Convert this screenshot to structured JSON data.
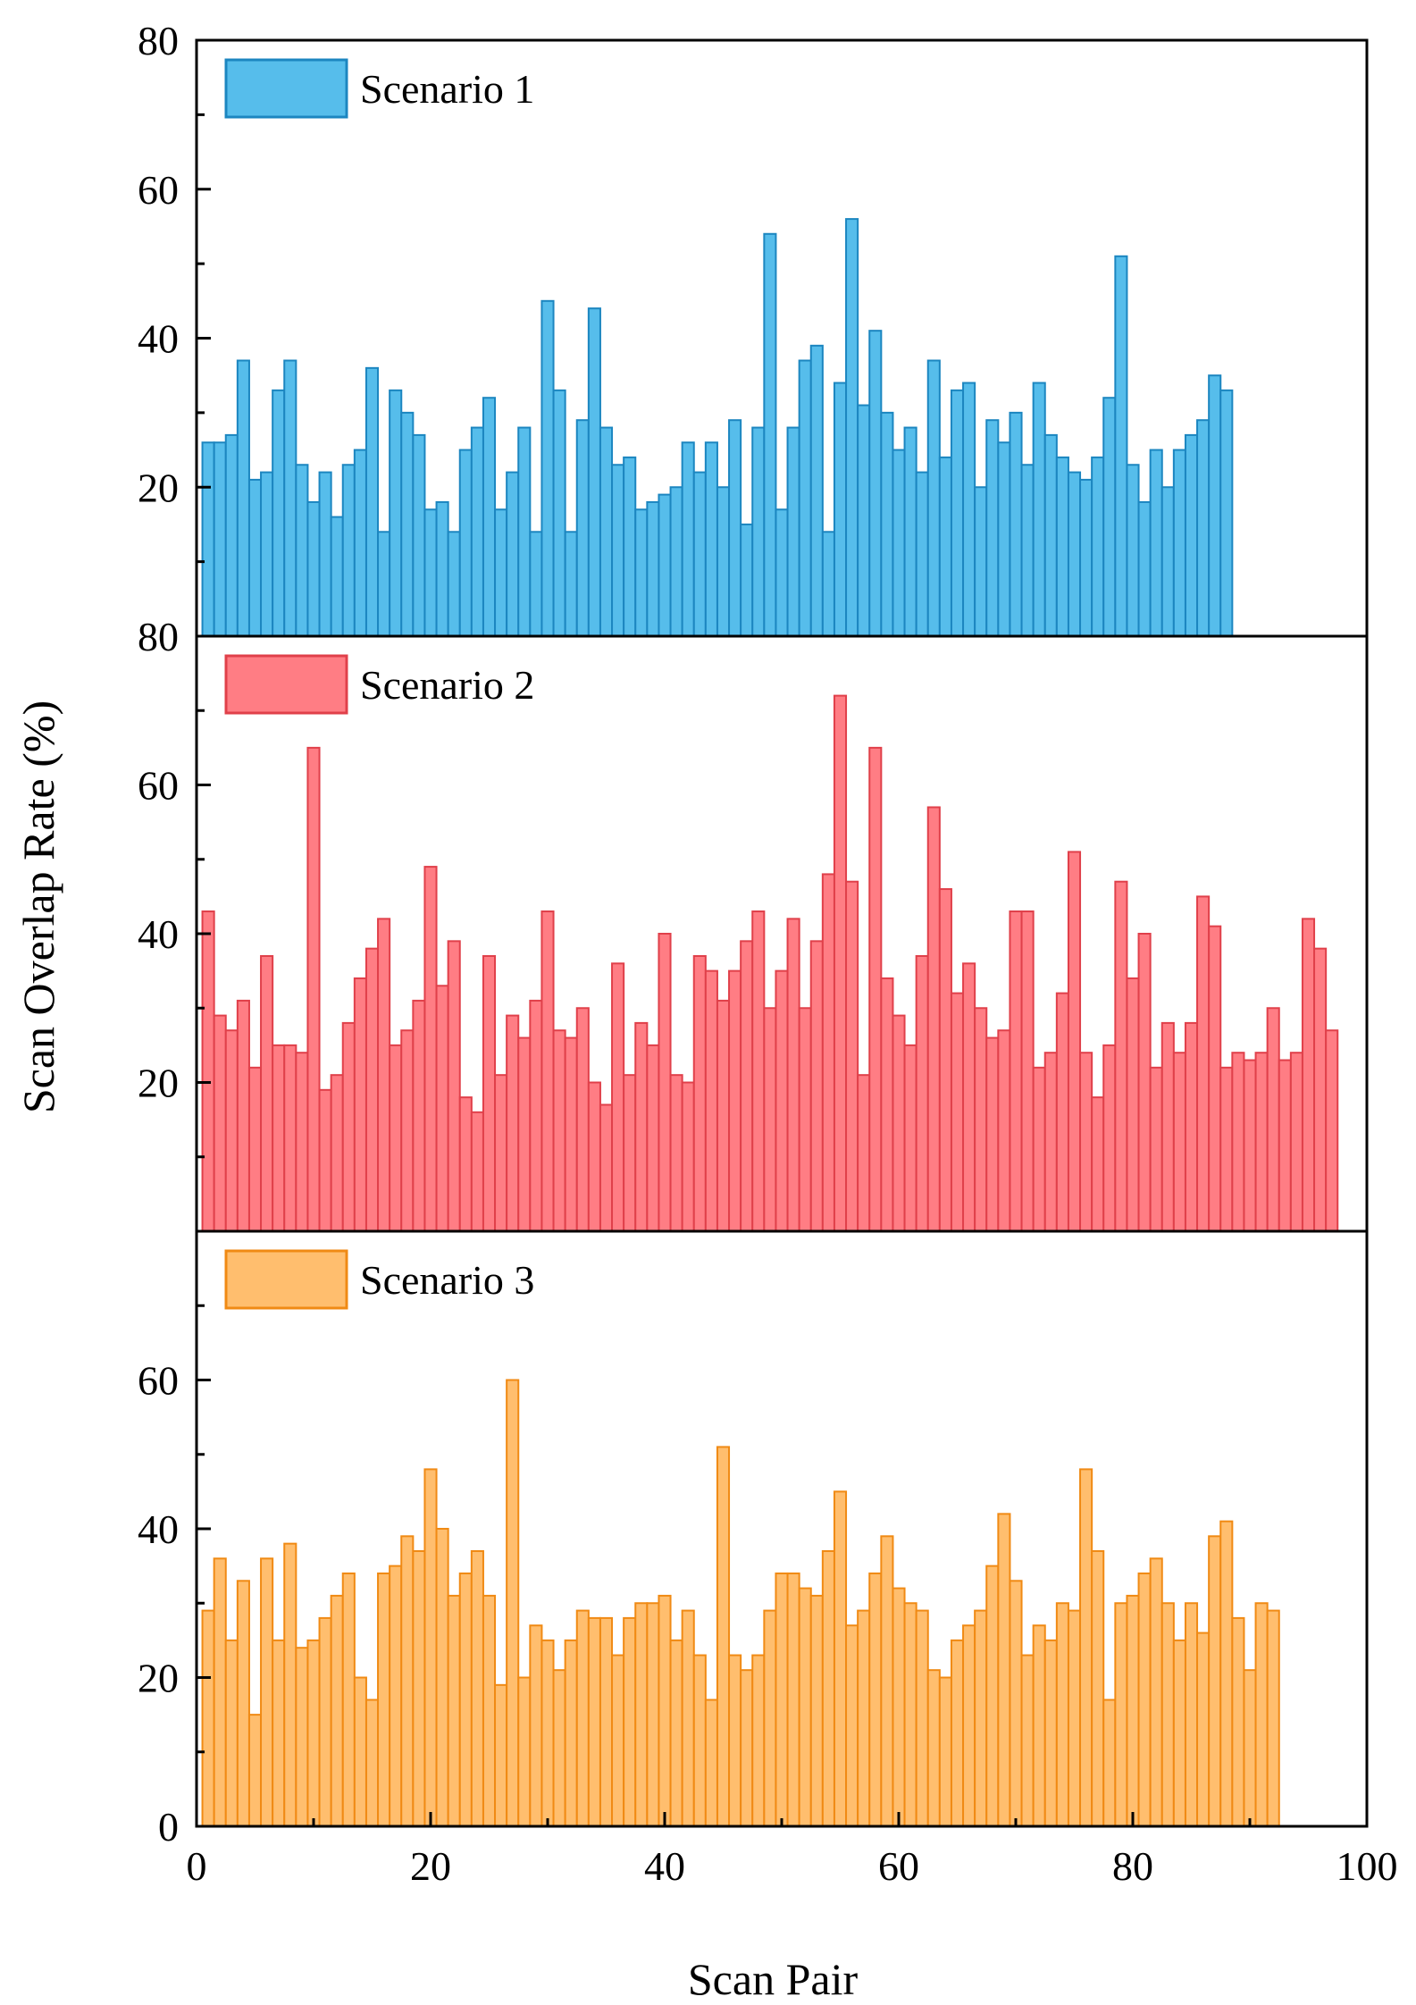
{
  "chart_data": {
    "type": "bar",
    "layout": "stacked-panels",
    "xlabel": "Scan Pair",
    "ylabel": "Scan Overlap Rate (%)",
    "xlim": [
      0,
      100
    ],
    "x_ticks": [
      "0",
      "20",
      "40",
      "60",
      "80",
      "100"
    ],
    "ylim": [
      0,
      80
    ],
    "panels": [
      {
        "name": "Scenario 1",
        "color": "#56BDEB",
        "edge": "#1C86C0",
        "y_ticks": [
          "20",
          "40",
          "60",
          "80"
        ],
        "values": [
          26,
          26,
          27,
          37,
          21,
          22,
          33,
          37,
          23,
          18,
          22,
          16,
          23,
          25,
          36,
          14,
          33,
          30,
          27,
          17,
          18,
          14,
          25,
          28,
          32,
          17,
          22,
          28,
          14,
          45,
          33,
          14,
          29,
          44,
          28,
          23,
          24,
          17,
          18,
          19,
          20,
          26,
          22,
          26,
          20,
          29,
          15,
          28,
          54,
          17,
          28,
          37,
          39,
          14,
          34,
          56,
          31,
          41,
          30,
          25,
          28,
          22,
          37,
          24,
          33,
          34,
          20,
          29,
          26,
          30,
          23,
          34,
          27,
          24,
          22,
          21,
          24,
          32,
          51,
          23,
          18,
          25,
          20,
          25,
          27,
          29,
          35,
          33
        ]
      },
      {
        "name": "Scenario 2",
        "color": "#FF7D84",
        "edge": "#E0404A",
        "y_ticks": [
          "20",
          "40",
          "60",
          "80"
        ],
        "values": [
          43,
          29,
          27,
          31,
          22,
          37,
          25,
          25,
          24,
          65,
          19,
          21,
          28,
          34,
          38,
          42,
          25,
          27,
          31,
          49,
          33,
          39,
          18,
          16,
          37,
          21,
          29,
          26,
          31,
          43,
          27,
          26,
          30,
          20,
          17,
          36,
          21,
          28,
          25,
          40,
          21,
          20,
          37,
          35,
          31,
          35,
          39,
          43,
          30,
          35,
          42,
          30,
          39,
          48,
          72,
          47,
          21,
          65,
          34,
          29,
          25,
          37,
          57,
          46,
          32,
          36,
          30,
          26,
          27,
          43,
          43,
          22,
          24,
          32,
          51,
          24,
          18,
          25,
          47,
          34,
          40,
          22,
          28,
          24,
          28,
          45,
          41,
          22,
          24,
          23,
          24,
          30,
          23,
          24,
          42,
          38,
          27
        ]
      },
      {
        "name": "Scenario 3",
        "color": "#FFBE6E",
        "edge": "#F08A14",
        "y_ticks": [
          "0",
          "20",
          "40",
          "60"
        ],
        "values": [
          29,
          36,
          25,
          33,
          15,
          36,
          25,
          38,
          24,
          25,
          28,
          31,
          34,
          20,
          17,
          34,
          35,
          39,
          37,
          48,
          40,
          31,
          34,
          37,
          31,
          19,
          60,
          20,
          27,
          25,
          21,
          25,
          29,
          28,
          28,
          23,
          28,
          30,
          30,
          31,
          25,
          29,
          23,
          17,
          51,
          23,
          21,
          23,
          29,
          34,
          34,
          32,
          31,
          37,
          45,
          27,
          29,
          34,
          39,
          32,
          30,
          29,
          21,
          20,
          25,
          27,
          29,
          35,
          42,
          33,
          23,
          27,
          25,
          30,
          29,
          48,
          37,
          17,
          30,
          31,
          34,
          36,
          30,
          25,
          30,
          26,
          39,
          41,
          28,
          21,
          30,
          29
        ]
      }
    ]
  }
}
